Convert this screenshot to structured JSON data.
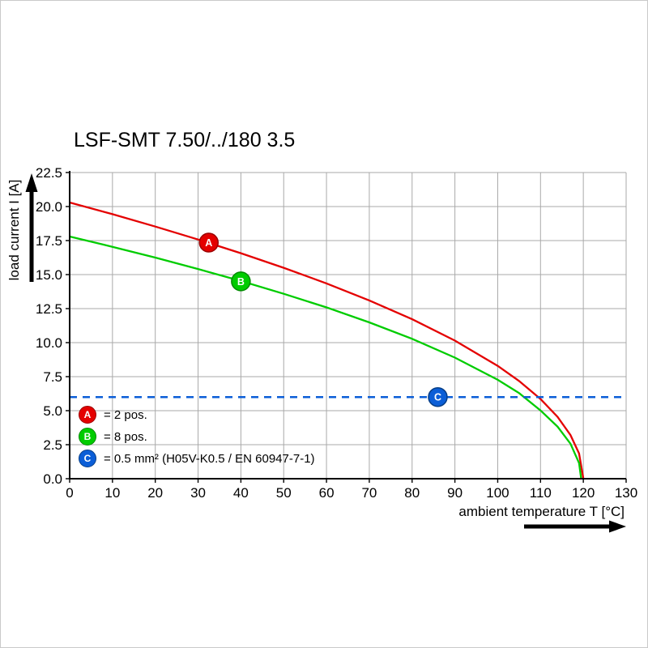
{
  "chart_data": {
    "type": "line",
    "title": "LSF-SMT 7.50/../180 3.5",
    "xlabel": "ambient temperature T [°C]",
    "ylabel": "load current I [A]",
    "xlim": [
      0,
      130
    ],
    "ylim": [
      0,
      22.5
    ],
    "grid": true,
    "grid_color": "#a9a9a9",
    "legend_position": "bottom-left",
    "x_tick_values": [
      0,
      10,
      20,
      30,
      40,
      50,
      60,
      70,
      80,
      90,
      100,
      110,
      120,
      130
    ],
    "x_tick_labels": [
      "0",
      "10",
      "20",
      "30",
      "40",
      "50",
      "60",
      "70",
      "80",
      "90",
      "100",
      "110",
      "120",
      "130"
    ],
    "y_tick_values": [
      0,
      2.5,
      5,
      7.5,
      10,
      12.5,
      15,
      17.5,
      20,
      22.5
    ],
    "y_tick_labels": [
      "0.0",
      "2.5",
      "5.0",
      "7.5",
      "10.0",
      "12.5",
      "15.0",
      "17.5",
      "20.0",
      "22.5"
    ],
    "series": [
      {
        "name": "A",
        "legend_label": "= 2 pos.",
        "color": "#e40000",
        "edge_color": "#9b0000",
        "style": "solid",
        "x": [
          0,
          10,
          20,
          30,
          40,
          50,
          60,
          70,
          80,
          90,
          100,
          105,
          110,
          114,
          117,
          119,
          120
        ],
        "y": [
          20.3,
          19.44,
          18.53,
          17.58,
          16.57,
          15.5,
          14.35,
          13.1,
          11.72,
          10.15,
          8.29,
          7.18,
          5.86,
          4.54,
          3.21,
          1.85,
          0
        ],
        "marker": {
          "x": 32.5,
          "y": 17.35
        }
      },
      {
        "name": "B",
        "legend_label": "= 8 pos.",
        "color": "#00cc00",
        "edge_color": "#008a00",
        "style": "solid",
        "x": [
          0,
          10,
          20,
          30,
          40,
          50,
          60,
          70,
          80,
          90,
          100,
          105,
          110,
          114,
          117,
          119,
          119.5
        ],
        "y": [
          17.8,
          17.04,
          16.25,
          15.41,
          14.53,
          13.59,
          12.59,
          11.49,
          10.28,
          8.9,
          7.27,
          6.29,
          5.02,
          3.82,
          2.57,
          1.15,
          0
        ],
        "marker": {
          "x": 40,
          "y": 14.5
        }
      },
      {
        "name": "C",
        "legend_label": "= 0.5 mm² (H05V-K0.5 / EN 60947-7-1)",
        "color": "#0b5ed7",
        "edge_color": "#063e87",
        "style": "dashed",
        "x": [
          0,
          130
        ],
        "y": [
          6,
          6
        ],
        "marker": {
          "x": 86,
          "y": 6
        }
      }
    ]
  }
}
